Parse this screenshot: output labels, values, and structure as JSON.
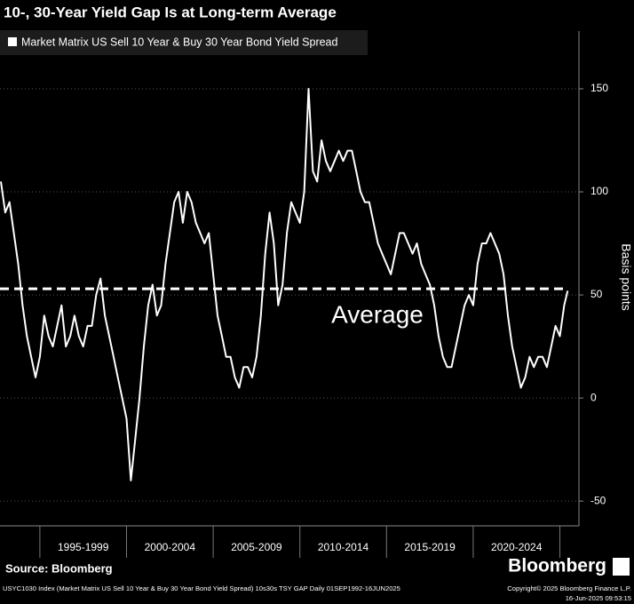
{
  "chart_data": {
    "type": "line",
    "title": "10-, 30-Year Yield Gap Is at Long-term Average",
    "y_label": "Basis points",
    "x": [
      1992.75,
      1993,
      1993.25,
      1993.5,
      1993.75,
      1994,
      1994.25,
      1994.5,
      1994.75,
      1995,
      1995.25,
      1995.5,
      1995.75,
      1996,
      1996.25,
      1996.5,
      1996.75,
      1997,
      1997.25,
      1997.5,
      1997.75,
      1998,
      1998.25,
      1998.5,
      1998.75,
      1999,
      1999.25,
      1999.5,
      1999.75,
      2000,
      2000.25,
      2000.5,
      2000.75,
      2001,
      2001.25,
      2001.5,
      2001.75,
      2002,
      2002.25,
      2002.5,
      2002.75,
      2003,
      2003.25,
      2003.5,
      2003.75,
      2004,
      2004.25,
      2004.5,
      2004.75,
      2005,
      2005.25,
      2005.5,
      2005.75,
      2006,
      2006.25,
      2006.5,
      2006.75,
      2007,
      2007.25,
      2007.5,
      2007.75,
      2008,
      2008.25,
      2008.5,
      2008.75,
      2009,
      2009.25,
      2009.5,
      2009.75,
      2010,
      2010.25,
      2010.5,
      2010.75,
      2011,
      2011.25,
      2011.5,
      2011.75,
      2012,
      2012.25,
      2012.5,
      2012.75,
      2013,
      2013.25,
      2013.5,
      2013.75,
      2014,
      2014.25,
      2014.5,
      2014.75,
      2015,
      2015.25,
      2015.5,
      2015.75,
      2016,
      2016.25,
      2016.5,
      2016.75,
      2017,
      2017.25,
      2017.5,
      2017.75,
      2018,
      2018.25,
      2018.5,
      2018.75,
      2019,
      2019.25,
      2019.5,
      2019.75,
      2020,
      2020.25,
      2020.5,
      2020.75,
      2021,
      2021.25,
      2021.5,
      2021.75,
      2022,
      2022.25,
      2022.5,
      2022.75,
      2023,
      2023.25,
      2023.5,
      2023.75,
      2024,
      2024.25,
      2024.5,
      2024.75,
      2025,
      2025.25,
      2025.45
    ],
    "series": [
      {
        "name": "Market Matrix US Sell 10 Year & Buy 30 Year Bond Yield Spread",
        "color": "#ffffff",
        "values": [
          105,
          90,
          95,
          80,
          65,
          45,
          30,
          20,
          10,
          20,
          40,
          30,
          25,
          35,
          45,
          25,
          30,
          40,
          30,
          25,
          35,
          35,
          50,
          58,
          40,
          30,
          20,
          10,
          0,
          -10,
          -40,
          -20,
          0,
          25,
          45,
          55,
          40,
          45,
          65,
          80,
          95,
          100,
          85,
          100,
          95,
          85,
          80,
          75,
          80,
          60,
          40,
          30,
          20,
          20,
          10,
          5,
          15,
          15,
          10,
          20,
          40,
          70,
          90,
          75,
          45,
          55,
          80,
          95,
          90,
          85,
          100,
          150,
          110,
          105,
          125,
          115,
          110,
          115,
          120,
          115,
          120,
          120,
          110,
          100,
          95,
          95,
          85,
          75,
          70,
          65,
          60,
          70,
          80,
          80,
          75,
          70,
          75,
          65,
          60,
          55,
          45,
          30,
          20,
          15,
          15,
          25,
          35,
          45,
          50,
          45,
          65,
          75,
          75,
          80,
          75,
          70,
          60,
          40,
          25,
          15,
          5,
          10,
          20,
          15,
          20,
          20,
          15,
          25,
          35,
          30,
          45,
          52
        ]
      }
    ],
    "xlim": [
      1992.7,
      2026.1
    ],
    "xticks": [
      1995,
      2000,
      2005,
      2010,
      2015,
      2020,
      2025
    ],
    "x_period_labels": [
      "1995-1999",
      "2000-2004",
      "2005-2009",
      "2010-2014",
      "2015-2019",
      "2020-2024"
    ],
    "ylim": [
      -62,
      178
    ],
    "yticks": [
      -50,
      0,
      50,
      100,
      150
    ],
    "grid": true,
    "average": {
      "value": 53,
      "label": "Average"
    },
    "source": "Source: Bloomberg",
    "logo": "Bloomberg",
    "footer_left": "USYC1030 Index (Market Matrix US Sell 10 Year & Buy 30 Year Bond Yield Spread) 10s30s TSY GAP  Daily 01SEP1992-16JUN2025",
    "footer_right": [
      "Copyright© 2025 Bloomberg Finance L.P.",
      "16-Jun-2025 09:53:15"
    ]
  }
}
